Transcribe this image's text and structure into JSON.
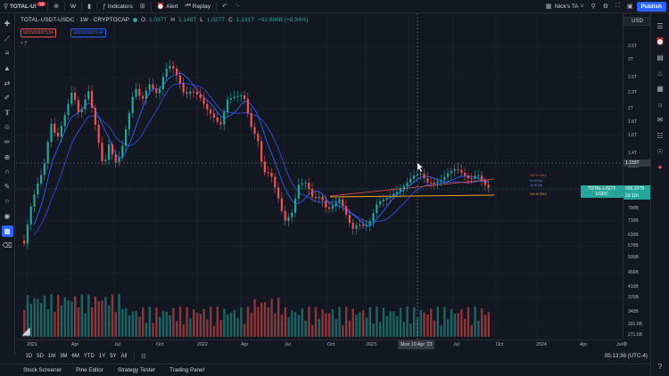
{
  "topbar": {
    "symbol": "TOTAL-U!",
    "notification_count": "18",
    "interval": "W",
    "indicators_label": "Indicators",
    "alert_label": "Alert",
    "replay_label": "Replay",
    "layout_name": "Nick's TA",
    "publish_label": "Publish"
  },
  "legend": {
    "title": "TOTAL-USDT-USDC · 1W · CRYPTOCAP",
    "o_key": "O",
    "o_val": "1.037T",
    "h_key": "H",
    "h_val": "1.148T",
    "l_key": "L",
    "l_val": "1.027T",
    "c_key": "C",
    "c_val": "1.131T",
    "change": "+92.806B (+8.94%)",
    "tag1": "92656699T534",
    "tag2": "92656699T534",
    "hidden_count": "7"
  },
  "price_axis": {
    "currency": "USD",
    "labels": [
      "3.5T",
      "3T",
      "2.6T",
      "2.3T",
      "2T",
      "1.8T",
      "1.6T",
      "1.4T",
      "1.25T",
      "1.01T",
      "790B",
      "710B",
      "630B",
      "570B",
      "500B",
      "456B",
      "410B",
      "370B",
      "340B",
      "301.5B",
      "271.5B"
    ],
    "crosshair_price": "1.153T",
    "last_price_label": "TOTAL-USDT-USDC",
    "last_price": "926.337B",
    "countdown": "2d 11h"
  },
  "chart_annotations": {
    "ma_label_1": "200 W SMA",
    "ma_label_2": "50 W MA",
    "ma_label_3": "20 W MA",
    "ma_label_4": "200 W EMA"
  },
  "time_axis": {
    "labels": [
      "2021",
      "Apr",
      "Jul",
      "Oct",
      "2022",
      "Apr",
      "Jul",
      "Oct",
      "2023",
      "Jul",
      "Oct",
      "2024",
      "Apr",
      "Jul"
    ],
    "crosshair_date": "Mon 10 Apr '23"
  },
  "range_bar": {
    "ranges": [
      "1D",
      "5D",
      "1M",
      "3M",
      "6M",
      "YTD",
      "1Y",
      "5Y",
      "All"
    ],
    "clock": "05:13:36 (UTC-4)"
  },
  "bottom_tabs": [
    "Stock Screener",
    "Pine Editor",
    "Strategy Tester",
    "Trading Panel"
  ],
  "colors": {
    "up": "#26a69a",
    "down": "#ef5350",
    "accent": "#2962ff",
    "background": "#131722"
  },
  "icons": {
    "left_toolbar": [
      "crosshair-icon",
      "trend-line-icon",
      "fib-icon",
      "pattern-icon",
      "measure-icon",
      "brush-icon",
      "text-icon",
      "emoji-icon",
      "ruler-icon",
      "zoom-icon",
      "magnet-icon",
      "lock-draw-icon",
      "lock-icon",
      "eye-icon",
      "favorite-tools-icon",
      "trash-icon"
    ],
    "right_panel": [
      "watchlist-icon",
      "alerts-icon",
      "data-window-icon",
      "hotlist-icon",
      "calendar-icon",
      "ideas-icon",
      "chat-icon",
      "news-icon",
      "notifications-icon",
      "help-icon"
    ]
  }
}
